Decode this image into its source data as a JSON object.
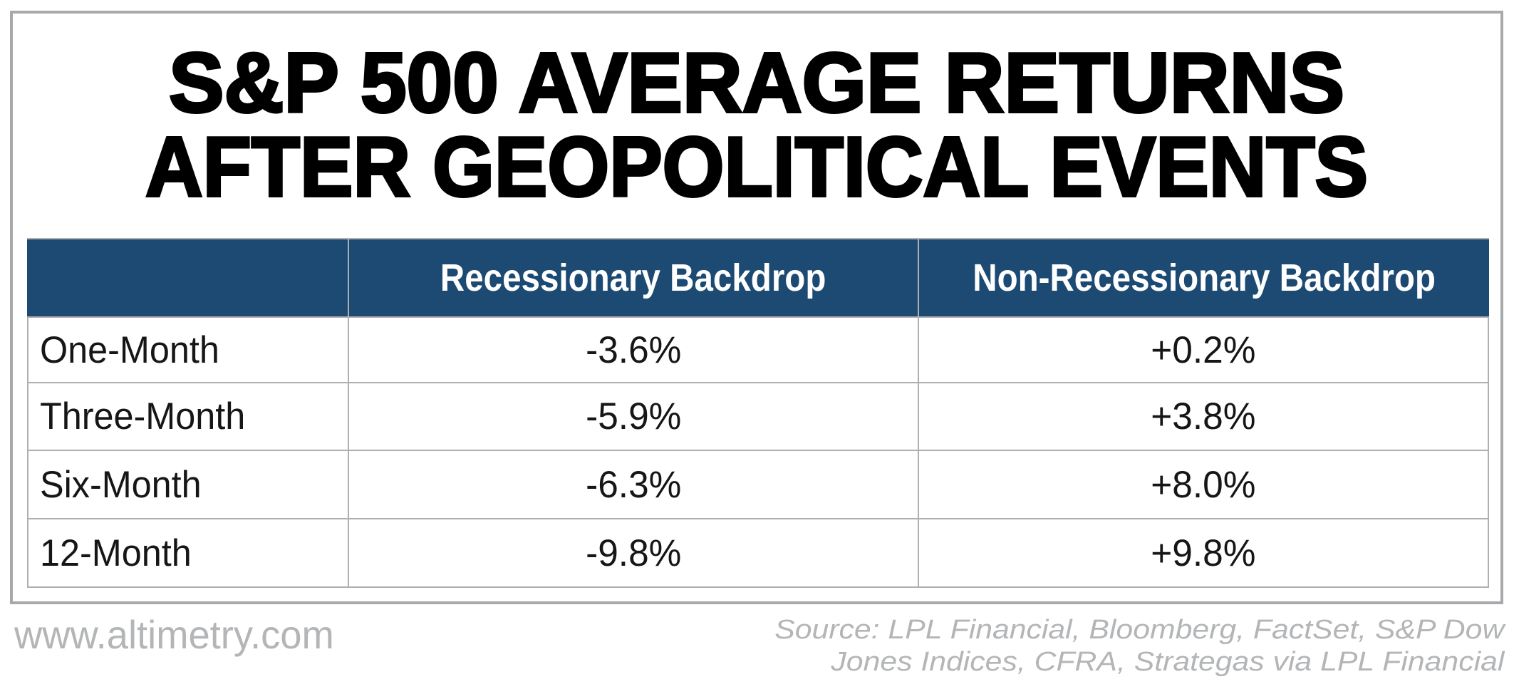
{
  "title": {
    "line1": "S&P 500 AVERAGE RETURNS",
    "line2": "AFTER GEOPOLITICAL EVENTS",
    "full": "S&P 500 AVERAGE RETURNS AFTER GEOPOLITICAL EVENTS"
  },
  "table": {
    "columns": [
      "",
      "Recessionary Backdrop",
      "Non-Recessionary Backdrop"
    ],
    "rows": [
      {
        "label": "One-Month",
        "recessionary": "-3.6%",
        "non_recessionary": "+0.2%"
      },
      {
        "label": "Three-Month",
        "recessionary": "-5.9%",
        "non_recessionary": "+3.8%"
      },
      {
        "label": "Six-Month",
        "recessionary": "-6.3%",
        "non_recessionary": "+8.0%"
      },
      {
        "label": "12-Month",
        "recessionary": "-9.8%",
        "non_recessionary": "+9.8%"
      }
    ]
  },
  "footer": {
    "website": "www.altimetry.com",
    "source_line1": "Source: LPL Financial, Bloomberg, FactSet, S&P Dow",
    "source_line2": "Jones Indices, CFRA, Strategas via LPL Financial"
  },
  "colors": {
    "header_background": "#1c4a72",
    "header_text": "#ffffff",
    "title_text": "#000000",
    "grid_line": "#aeafb2",
    "outer_border": "#a7a9ac",
    "footer_text": "#b3b5b7"
  },
  "chart_data": {
    "type": "table",
    "title": "S&P 500 AVERAGE RETURNS AFTER GEOPOLITICAL EVENTS",
    "categories": [
      "One-Month",
      "Three-Month",
      "Six-Month",
      "12-Month"
    ],
    "series": [
      {
        "name": "Recessionary Backdrop",
        "values": [
          -3.6,
          -5.9,
          -6.3,
          -9.8
        ]
      },
      {
        "name": "Non-Recessionary Backdrop",
        "values": [
          0.2,
          3.8,
          8.0,
          9.8
        ]
      }
    ],
    "value_unit": "percent",
    "source": "Source: LPL Financial, Bloomberg, FactSet, S&P Dow Jones Indices, CFRA, Strategas via LPL Financial",
    "website": "www.altimetry.com"
  }
}
